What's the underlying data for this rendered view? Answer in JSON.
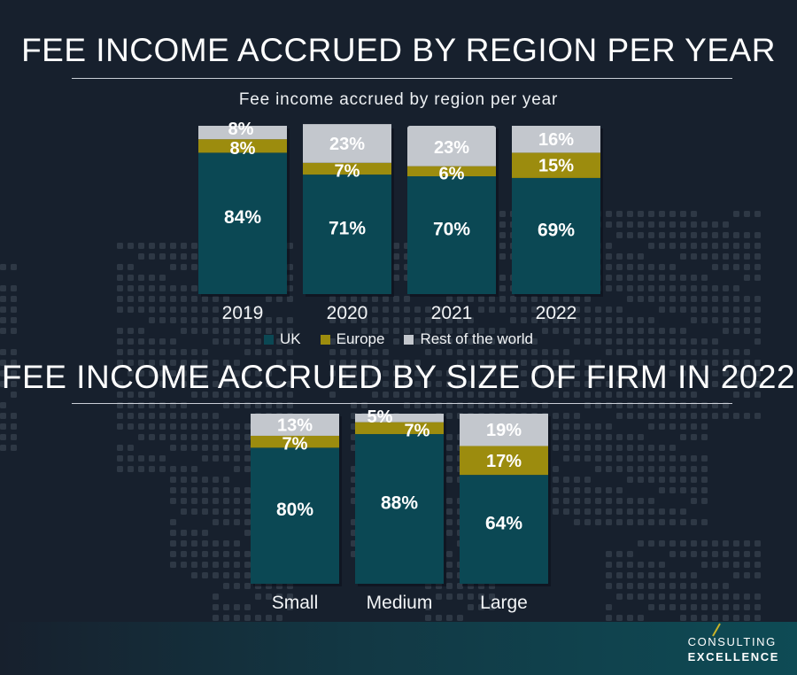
{
  "colors": {
    "background": "#17202d",
    "uk": "#0b4854",
    "europe": "#9c8c0e",
    "rest_of_world": "#c3c7cd",
    "map_dots": "#2e3845",
    "accent_slash": "#c8b32a"
  },
  "headings": {
    "region": "FEE INCOME ACCRUED BY REGION PER YEAR",
    "size": "FEE INCOME ACCRUED BY SIZE OF FIRM IN 2022"
  },
  "legend": {
    "items": [
      {
        "label": "UK",
        "color": "#0b4854"
      },
      {
        "label": "Europe",
        "color": "#9c8c0e"
      },
      {
        "label": "Rest of the world",
        "color": "#c3c7cd"
      }
    ]
  },
  "logo": {
    "line1": "CONSULTING",
    "line2": "EXCELLENCE",
    "icon": "slash-mark-icon"
  },
  "chart_data": [
    {
      "type": "bar",
      "stacked": true,
      "title": "Fee income accrued by region per year",
      "categories": [
        "2019",
        "2020",
        "2021",
        "2022"
      ],
      "series": [
        {
          "name": "UK",
          "values": [
            84,
            71,
            70,
            69
          ],
          "labels": [
            "84%",
            "71%",
            "70%",
            "69%"
          ]
        },
        {
          "name": "Europe",
          "values": [
            8,
            7,
            6,
            15
          ],
          "labels": [
            "8%",
            "7%",
            "6%",
            "15%"
          ]
        },
        {
          "name": "Rest of the world",
          "values": [
            8,
            23,
            23,
            16
          ],
          "labels": [
            "8%",
            "23%",
            "23%",
            "16%"
          ]
        }
      ],
      "ylim": [
        0,
        100
      ],
      "grid": false,
      "legend": "bottom"
    },
    {
      "type": "bar",
      "stacked": true,
      "title": "",
      "categories": [
        "Small",
        "Medium",
        "Large"
      ],
      "series": [
        {
          "name": "UK",
          "values": [
            80,
            88,
            64
          ],
          "labels": [
            "80%",
            "88%",
            "64%"
          ]
        },
        {
          "name": "Europe",
          "values": [
            7,
            7,
            17
          ],
          "labels": [
            "7%",
            "7%",
            "17%"
          ]
        },
        {
          "name": "Rest of the world",
          "values": [
            13,
            5,
            19
          ],
          "labels": [
            "13%",
            "5%",
            "19%"
          ]
        }
      ],
      "ylim": [
        0,
        100
      ],
      "grid": false,
      "legend": "none"
    }
  ]
}
